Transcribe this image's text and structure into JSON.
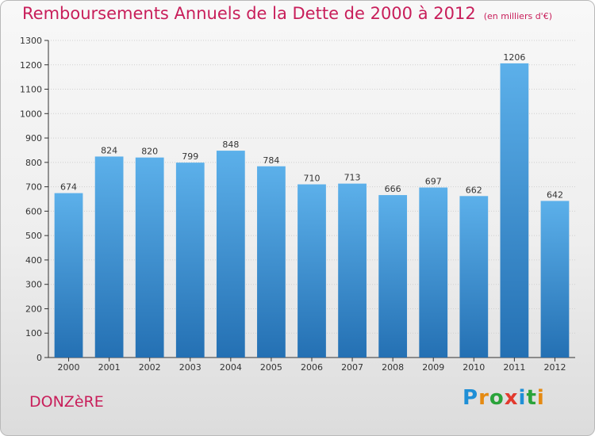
{
  "title": "Remboursements Annuels de la Dette de 2000 à 2012",
  "unit_note": "(en milliers d'€)",
  "commune": "DONZèRE",
  "logo": {
    "text": "Proxiti",
    "letters": [
      "P",
      "r",
      "o",
      "x",
      "i",
      "t",
      "i"
    ],
    "letter_colors": [
      "#1f8fd6",
      "#e58a12",
      "#2aa33a",
      "#e23a2e",
      "#1f8fd6",
      "#2aa33a",
      "#e58a12"
    ]
  },
  "colors": {
    "title": "#c81e5a",
    "bar_top": "#5cb0ea",
    "bar_bottom": "#2470b3",
    "axis": "#333333"
  },
  "chart_data": {
    "type": "bar",
    "title": "Remboursements Annuels de la Dette de 2000 à 2012",
    "categories": [
      "2000",
      "2001",
      "2002",
      "2003",
      "2004",
      "2005",
      "2006",
      "2007",
      "2008",
      "2009",
      "2010",
      "2011",
      "2012"
    ],
    "values": [
      674,
      824,
      820,
      799,
      848,
      784,
      710,
      713,
      666,
      697,
      662,
      1206,
      642
    ],
    "data_labels": [
      "674",
      "824",
      "820",
      "799",
      "848",
      "784",
      "710",
      "713",
      "666",
      "697",
      "662",
      "1206",
      "642"
    ],
    "ylim": [
      0,
      1300
    ],
    "yticks": [
      0,
      100,
      200,
      300,
      400,
      500,
      600,
      700,
      800,
      900,
      1000,
      1100,
      1200,
      1300
    ],
    "grid": true,
    "xlabel": "",
    "ylabel": ""
  }
}
